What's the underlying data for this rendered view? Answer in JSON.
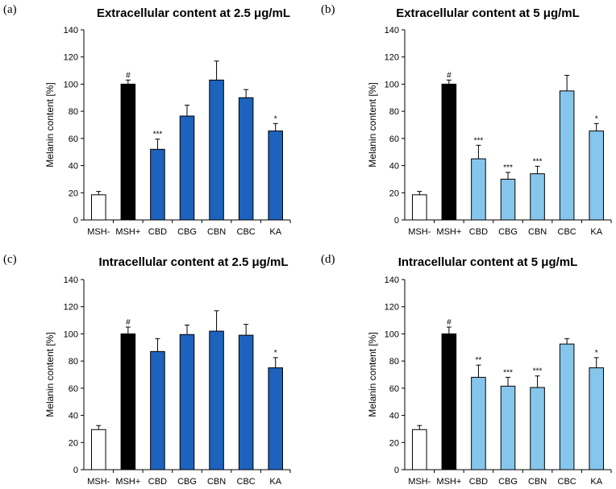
{
  "chart_data": [
    {
      "type": "bar",
      "panel_label": "(a)",
      "title": "Extracellular content at 2.5 μg/mL",
      "xlabel": "",
      "ylabel": "Melanin content [%]",
      "ylim": [
        0,
        140
      ],
      "yticks": [
        "0",
        "20",
        "40",
        "60",
        "80",
        "100",
        "120",
        "140"
      ],
      "grid": false,
      "categories": [
        "MSH-",
        "MSH+",
        "CBD",
        "CBG",
        "CBN",
        "CBC",
        "KA"
      ],
      "values": [
        18.5,
        100,
        52,
        76.5,
        103,
        90,
        65.5
      ],
      "errors": [
        2.5,
        3,
        7.5,
        8,
        14,
        6,
        5.5
      ],
      "significance": [
        "",
        "#",
        "***",
        "",
        "",
        "",
        "*"
      ],
      "colors": [
        "#ffffff",
        "#000000",
        "#1d63be",
        "#1d63be",
        "#1d63be",
        "#1d63be",
        "#1d63be"
      ]
    },
    {
      "type": "bar",
      "panel_label": "(b)",
      "title": "Extracellular content at 5 μg/mL",
      "xlabel": "",
      "ylabel": "Melanin content [%]",
      "ylim": [
        0,
        140
      ],
      "yticks": [
        "0",
        "20",
        "40",
        "60",
        "80",
        "100",
        "120",
        "140"
      ],
      "grid": false,
      "categories": [
        "MSH-",
        "MSH+",
        "CBD",
        "CBG",
        "CBN",
        "CBC",
        "KA"
      ],
      "values": [
        18.5,
        100,
        45,
        30,
        34,
        95,
        65.5
      ],
      "errors": [
        2.5,
        3,
        10,
        5,
        5.5,
        11.5,
        5.5
      ],
      "significance": [
        "",
        "#",
        "***",
        "***",
        "***",
        "",
        "*"
      ],
      "colors": [
        "#ffffff",
        "#000000",
        "#87c6ec",
        "#87c6ec",
        "#87c6ec",
        "#87c6ec",
        "#87c6ec"
      ]
    },
    {
      "type": "bar",
      "panel_label": "(c)",
      "title": "Intracellular content at 2.5 μg/mL",
      "xlabel": "",
      "ylabel": "Melanin content [%]",
      "ylim": [
        0,
        140
      ],
      "yticks": [
        "0",
        "20",
        "40",
        "60",
        "80",
        "100",
        "120",
        "140"
      ],
      "grid": false,
      "categories": [
        "MSH-",
        "MSH+",
        "CBD",
        "CBG",
        "CBN",
        "CBC",
        "KA"
      ],
      "values": [
        29.5,
        100,
        87,
        99.5,
        102,
        99,
        75
      ],
      "errors": [
        3,
        5,
        9.5,
        7,
        15,
        8,
        7.5
      ],
      "significance": [
        "",
        "#",
        "",
        "",
        "",
        "",
        "*"
      ],
      "colors": [
        "#ffffff",
        "#000000",
        "#1d63be",
        "#1d63be",
        "#1d63be",
        "#1d63be",
        "#1d63be"
      ]
    },
    {
      "type": "bar",
      "panel_label": "(d)",
      "title": "Intracellular content at 5 μg/mL",
      "xlabel": "",
      "ylabel": "Melanin content [%]",
      "ylim": [
        0,
        140
      ],
      "yticks": [
        "0",
        "20",
        "40",
        "60",
        "80",
        "100",
        "120",
        "140"
      ],
      "grid": false,
      "categories": [
        "MSH-",
        "MSH+",
        "CBD",
        "CBG",
        "CBN",
        "CBC",
        "KA"
      ],
      "values": [
        29.5,
        100,
        68,
        61.5,
        60.5,
        92.5,
        75
      ],
      "errors": [
        3,
        5,
        9,
        6.5,
        8.5,
        4,
        7.5
      ],
      "significance": [
        "",
        "#",
        "**",
        "***",
        "***",
        "",
        "*"
      ],
      "colors": [
        "#ffffff",
        "#000000",
        "#87c6ec",
        "#87c6ec",
        "#87c6ec",
        "#87c6ec",
        "#87c6ec"
      ]
    }
  ]
}
